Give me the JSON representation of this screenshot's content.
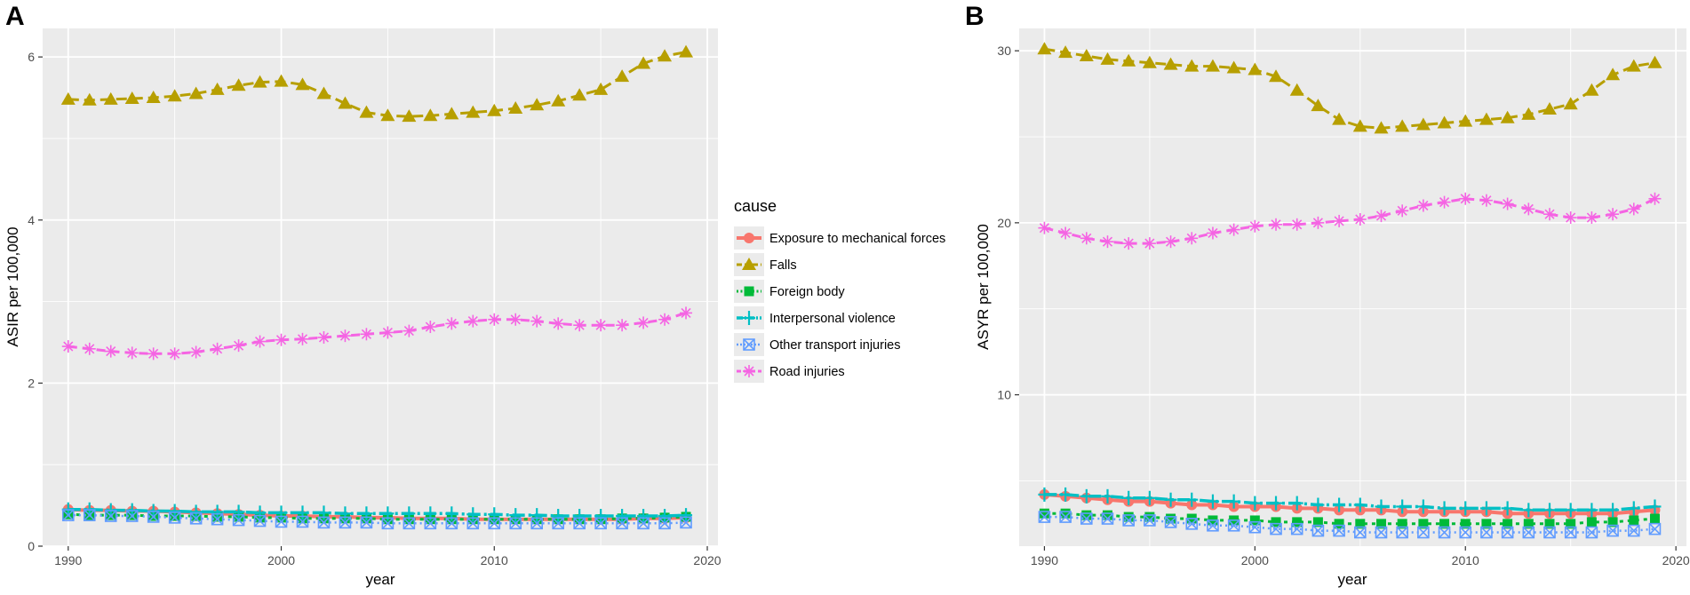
{
  "chart_data": [
    {
      "panel_label": "A",
      "type": "line",
      "xlabel": "year",
      "ylabel": "ASIR per 100,000",
      "xlim": [
        1988.8,
        2020.5
      ],
      "ylim": [
        0,
        6.35
      ],
      "x_ticks": [
        1990,
        2000,
        2010,
        2020
      ],
      "x_tick_labels": [
        "1990",
        "2000",
        "2010",
        "2020"
      ],
      "y_ticks": [
        0,
        2,
        4,
        6
      ],
      "y_tick_labels": [
        "0",
        "2",
        "4",
        "6"
      ],
      "grid": true,
      "x": [
        1990,
        1991,
        1992,
        1993,
        1994,
        1995,
        1996,
        1997,
        1998,
        1999,
        2000,
        2001,
        2002,
        2003,
        2004,
        2005,
        2006,
        2007,
        2008,
        2009,
        2010,
        2011,
        2012,
        2013,
        2014,
        2015,
        2016,
        2017,
        2018,
        2019
      ],
      "series": [
        {
          "name": "Exposure to mechanical forces",
          "values": [
            0.45,
            0.44,
            0.44,
            0.43,
            0.43,
            0.42,
            0.41,
            0.4,
            0.39,
            0.38,
            0.37,
            0.37,
            0.36,
            0.36,
            0.35,
            0.35,
            0.34,
            0.34,
            0.34,
            0.33,
            0.33,
            0.33,
            0.33,
            0.33,
            0.33,
            0.33,
            0.33,
            0.34,
            0.34,
            0.35
          ]
        },
        {
          "name": "Falls",
          "values": [
            5.48,
            5.47,
            5.48,
            5.49,
            5.5,
            5.52,
            5.55,
            5.6,
            5.65,
            5.69,
            5.7,
            5.66,
            5.55,
            5.43,
            5.32,
            5.28,
            5.27,
            5.28,
            5.3,
            5.32,
            5.34,
            5.37,
            5.41,
            5.46,
            5.53,
            5.6,
            5.76,
            5.92,
            6.01,
            6.06
          ]
        },
        {
          "name": "Foreign body",
          "values": [
            0.39,
            0.38,
            0.38,
            0.38,
            0.37,
            0.37,
            0.37,
            0.36,
            0.36,
            0.35,
            0.35,
            0.34,
            0.34,
            0.34,
            0.34,
            0.33,
            0.33,
            0.33,
            0.33,
            0.33,
            0.33,
            0.33,
            0.33,
            0.33,
            0.33,
            0.33,
            0.34,
            0.34,
            0.35,
            0.36
          ]
        },
        {
          "name": "Interpersonal violence",
          "values": [
            0.45,
            0.45,
            0.44,
            0.44,
            0.43,
            0.43,
            0.42,
            0.42,
            0.42,
            0.41,
            0.41,
            0.41,
            0.41,
            0.4,
            0.4,
            0.4,
            0.4,
            0.4,
            0.4,
            0.39,
            0.39,
            0.38,
            0.38,
            0.37,
            0.37,
            0.37,
            0.37,
            0.37,
            0.37,
            0.38
          ]
        },
        {
          "name": "Other transport injuries",
          "values": [
            0.38,
            0.38,
            0.37,
            0.37,
            0.36,
            0.35,
            0.34,
            0.33,
            0.32,
            0.31,
            0.3,
            0.3,
            0.29,
            0.29,
            0.29,
            0.28,
            0.28,
            0.28,
            0.28,
            0.28,
            0.28,
            0.28,
            0.28,
            0.28,
            0.28,
            0.28,
            0.28,
            0.28,
            0.28,
            0.29
          ]
        },
        {
          "name": "Road injuries",
          "values": [
            2.45,
            2.42,
            2.39,
            2.37,
            2.36,
            2.36,
            2.38,
            2.42,
            2.46,
            2.51,
            2.53,
            2.54,
            2.56,
            2.58,
            2.6,
            2.62,
            2.64,
            2.69,
            2.73,
            2.76,
            2.78,
            2.78,
            2.76,
            2.73,
            2.71,
            2.71,
            2.71,
            2.74,
            2.78,
            2.86
          ]
        }
      ]
    },
    {
      "panel_label": "B",
      "type": "line",
      "xlabel": "year",
      "ylabel": "ASYR per 100,000",
      "xlim": [
        1988.8,
        2020.5
      ],
      "ylim": [
        1.2,
        31.3
      ],
      "x_ticks": [
        1990,
        2000,
        2010,
        2020
      ],
      "x_tick_labels": [
        "1990",
        "2000",
        "2010",
        "2020"
      ],
      "y_ticks": [
        10,
        20,
        30
      ],
      "y_tick_labels": [
        "10",
        "20",
        "30"
      ],
      "grid": true,
      "x": [
        1990,
        1991,
        1992,
        1993,
        1994,
        1995,
        1996,
        1997,
        1998,
        1999,
        2000,
        2001,
        2002,
        2003,
        2004,
        2005,
        2006,
        2007,
        2008,
        2009,
        2010,
        2011,
        2012,
        2013,
        2014,
        2015,
        2016,
        2017,
        2018,
        2019
      ],
      "series": [
        {
          "name": "Exposure to mechanical forces",
          "values": [
            4.2,
            4.1,
            4.0,
            3.9,
            3.8,
            3.8,
            3.7,
            3.6,
            3.6,
            3.5,
            3.5,
            3.5,
            3.4,
            3.4,
            3.3,
            3.3,
            3.3,
            3.2,
            3.2,
            3.2,
            3.2,
            3.2,
            3.1,
            3.1,
            3.1,
            3.1,
            3.1,
            3.1,
            3.2,
            3.3
          ]
        },
        {
          "name": "Falls",
          "values": [
            30.1,
            29.9,
            29.7,
            29.5,
            29.4,
            29.3,
            29.2,
            29.1,
            29.1,
            29.0,
            28.9,
            28.5,
            27.7,
            26.8,
            26.0,
            25.6,
            25.5,
            25.6,
            25.7,
            25.8,
            25.9,
            26.0,
            26.1,
            26.3,
            26.6,
            26.9,
            27.7,
            28.6,
            29.1,
            29.3
          ]
        },
        {
          "name": "Foreign body",
          "values": [
            3.1,
            3.1,
            3.0,
            3.0,
            2.9,
            2.9,
            2.8,
            2.8,
            2.7,
            2.7,
            2.7,
            2.6,
            2.6,
            2.6,
            2.5,
            2.5,
            2.5,
            2.5,
            2.5,
            2.5,
            2.5,
            2.5,
            2.5,
            2.5,
            2.5,
            2.5,
            2.6,
            2.6,
            2.7,
            2.8
          ]
        },
        {
          "name": "Interpersonal violence",
          "values": [
            4.2,
            4.2,
            4.1,
            4.1,
            4.0,
            4.0,
            3.9,
            3.9,
            3.8,
            3.8,
            3.7,
            3.7,
            3.7,
            3.6,
            3.6,
            3.6,
            3.5,
            3.5,
            3.5,
            3.4,
            3.4,
            3.4,
            3.4,
            3.3,
            3.3,
            3.3,
            3.3,
            3.3,
            3.4,
            3.5
          ]
        },
        {
          "name": "Other transport injuries",
          "values": [
            2.9,
            2.9,
            2.8,
            2.8,
            2.7,
            2.7,
            2.6,
            2.5,
            2.4,
            2.4,
            2.3,
            2.2,
            2.2,
            2.1,
            2.1,
            2.0,
            2.0,
            2.0,
            2.0,
            2.0,
            2.0,
            2.0,
            2.0,
            2.0,
            2.0,
            2.0,
            2.0,
            2.1,
            2.1,
            2.2
          ]
        },
        {
          "name": "Road injuries",
          "values": [
            19.7,
            19.4,
            19.1,
            18.9,
            18.8,
            18.8,
            18.9,
            19.1,
            19.4,
            19.6,
            19.8,
            19.9,
            19.9,
            20.0,
            20.1,
            20.2,
            20.4,
            20.7,
            21.0,
            21.2,
            21.4,
            21.3,
            21.1,
            20.8,
            20.5,
            20.3,
            20.3,
            20.5,
            20.8,
            21.4
          ]
        }
      ]
    }
  ],
  "legend": {
    "title": "cause",
    "entries": [
      "Exposure to mechanical forces",
      "Falls",
      "Foreign body",
      "Interpersonal violence",
      "Other transport injuries",
      "Road injuries"
    ]
  },
  "series_colors": [
    "#F8766D",
    "#B79F00",
    "#00BA38",
    "#00BFC4",
    "#619CFF",
    "#F564E3"
  ]
}
